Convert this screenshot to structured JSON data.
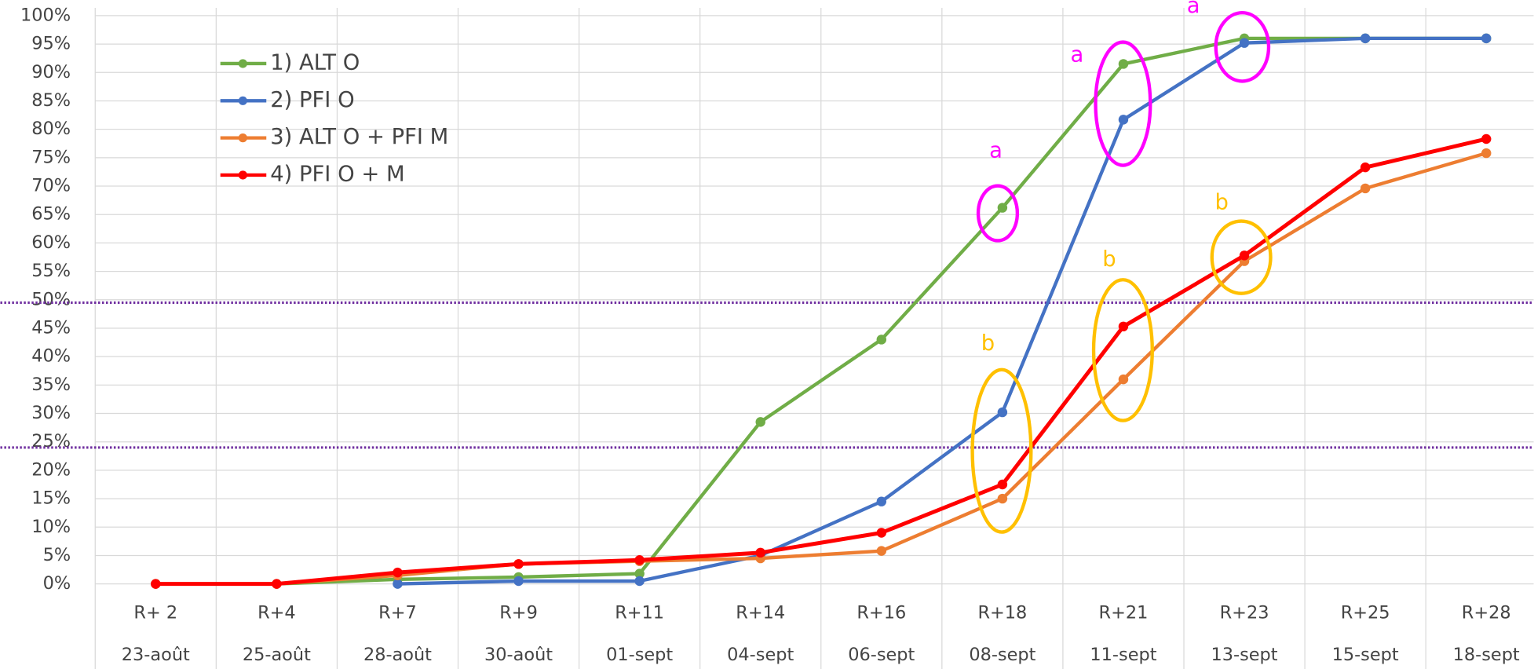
{
  "chart_data": {
    "type": "line",
    "categories": [
      "R+ 2",
      "R+4",
      "R+7",
      "R+9",
      "R+11",
      "R+14",
      "R+16",
      "R+18",
      "R+21",
      "R+23",
      "R+25",
      "R+28"
    ],
    "date_labels": [
      "23-août",
      "25-août",
      "28-août",
      "30-août",
      "01-sept",
      "04-sept",
      "06-sept",
      "08-sept",
      "11-sept",
      "13-sept",
      "15-sept",
      "18-sept"
    ],
    "series": [
      {
        "name": "1) ALT O",
        "color": "#70ad47",
        "values": [
          0,
          0,
          0.8,
          1.2,
          1.8,
          28.5,
          43,
          66.2,
          91.5,
          96,
          96,
          96
        ]
      },
      {
        "name": "2) PFI O",
        "color": "#4472c4",
        "values": [
          null,
          null,
          0,
          0.5,
          0.5,
          5,
          14.5,
          30.2,
          81.7,
          95.2,
          96,
          96
        ]
      },
      {
        "name": "3) ALT O + PFI M",
        "color": "#ed7d31",
        "values": [
          0,
          0,
          1.5,
          3.5,
          4,
          4.5,
          5.8,
          15,
          36,
          56.8,
          69.6,
          75.8
        ]
      },
      {
        "name": "4) PFI O + M",
        "color": "#ff0000",
        "values": [
          0,
          0,
          2,
          3.5,
          4.2,
          5.5,
          9,
          17.5,
          45.3,
          57.8,
          73.3,
          78.3
        ]
      }
    ],
    "ylim": [
      0,
      100
    ],
    "yticks": [
      {
        "value": 0,
        "label": "0%"
      },
      {
        "value": 5,
        "label": "5%"
      },
      {
        "value": 10,
        "label": "10%"
      },
      {
        "value": 15,
        "label": "15%"
      },
      {
        "value": 20,
        "label": "20%"
      },
      {
        "value": 25,
        "label": "25%"
      },
      {
        "value": 30,
        "label": "30%"
      },
      {
        "value": 35,
        "label": "35%"
      },
      {
        "value": 40,
        "label": "40%"
      },
      {
        "value": 45,
        "label": "45%"
      },
      {
        "value": 50,
        "label": "50%"
      },
      {
        "value": 55,
        "label": "55%"
      },
      {
        "value": 60,
        "label": "60%"
      },
      {
        "value": 65,
        "label": "65%"
      },
      {
        "value": 70,
        "label": "70%"
      },
      {
        "value": 75,
        "label": "75%"
      },
      {
        "value": 80,
        "label": "80%"
      },
      {
        "value": 85,
        "label": "85%"
      },
      {
        "value": 90,
        "label": "90%"
      },
      {
        "value": 95,
        "label": "95%"
      },
      {
        "value": 100,
        "label": "100%"
      }
    ],
    "grid": true,
    "reference_lines": {
      "color": "#7030a0",
      "values": [
        49.5,
        24
      ]
    },
    "legend": "upper left",
    "annotations": [
      {
        "text": "a",
        "color": "#ff00ff"
      },
      {
        "text": "a",
        "color": "#ff00ff"
      },
      {
        "text": "a",
        "color": "#ff00ff"
      },
      {
        "text": "b",
        "color": "#ffc000"
      },
      {
        "text": "b",
        "color": "#ffc000"
      },
      {
        "text": "b",
        "color": "#ffc000"
      }
    ]
  }
}
